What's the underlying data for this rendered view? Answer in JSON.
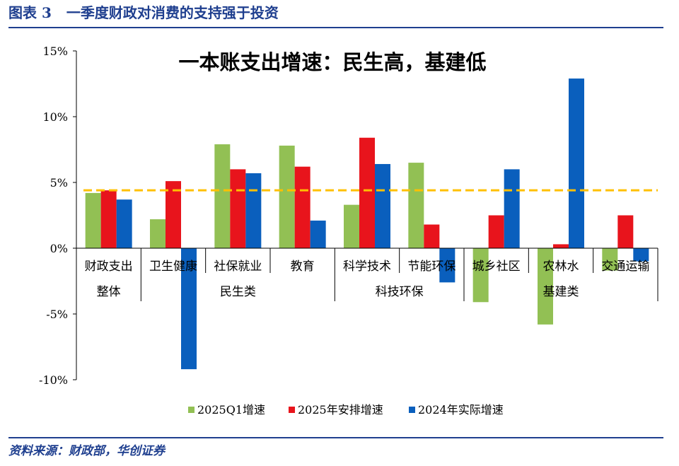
{
  "header": {
    "figure_no": "图表 3",
    "title": "一季度财政对消费的支持强于投资"
  },
  "source": "资料来源：财政部，华创证券",
  "chart_data": {
    "type": "bar",
    "title": "一本账支出增速：民生高，基建低",
    "categories": [
      "财政支出",
      "卫生健康",
      "社保就业",
      "教育",
      "科学技术",
      "节能环保",
      "城乡社区",
      "农林水",
      "交通运输"
    ],
    "groups": [
      {
        "label": "整体",
        "from": 0,
        "to": 0
      },
      {
        "label": "民生类",
        "from": 1,
        "to": 3
      },
      {
        "label": "科技环保",
        "from": 4,
        "to": 5
      },
      {
        "label": "基建类",
        "from": 6,
        "to": 8
      }
    ],
    "series": [
      {
        "name": "2025Q1增速",
        "color": "#92c054",
        "values": [
          4.2,
          2.2,
          7.9,
          7.8,
          3.3,
          6.5,
          -4.1,
          -5.8,
          -1.7
        ]
      },
      {
        "name": "2025年安排增速",
        "color": "#e8141c",
        "values": [
          4.4,
          5.1,
          6.0,
          6.2,
          8.4,
          1.8,
          2.5,
          0.3,
          2.5
        ]
      },
      {
        "name": "2024年实际增速",
        "color": "#0a5fbd",
        "values": [
          3.7,
          -9.2,
          5.7,
          2.1,
          6.4,
          -2.6,
          6.0,
          12.9,
          -1.0
        ]
      }
    ],
    "reference_line": {
      "value": 4.4,
      "color": "#ffc000",
      "style": "dashed"
    },
    "yticks": [
      "15%",
      "10%",
      "5%",
      "0%",
      "-5%",
      "-10%"
    ],
    "ytick_values": [
      15,
      10,
      5,
      0,
      -5,
      -10
    ],
    "ylim": [
      -10,
      15
    ],
    "legend_position": "bottom",
    "grid": false
  }
}
